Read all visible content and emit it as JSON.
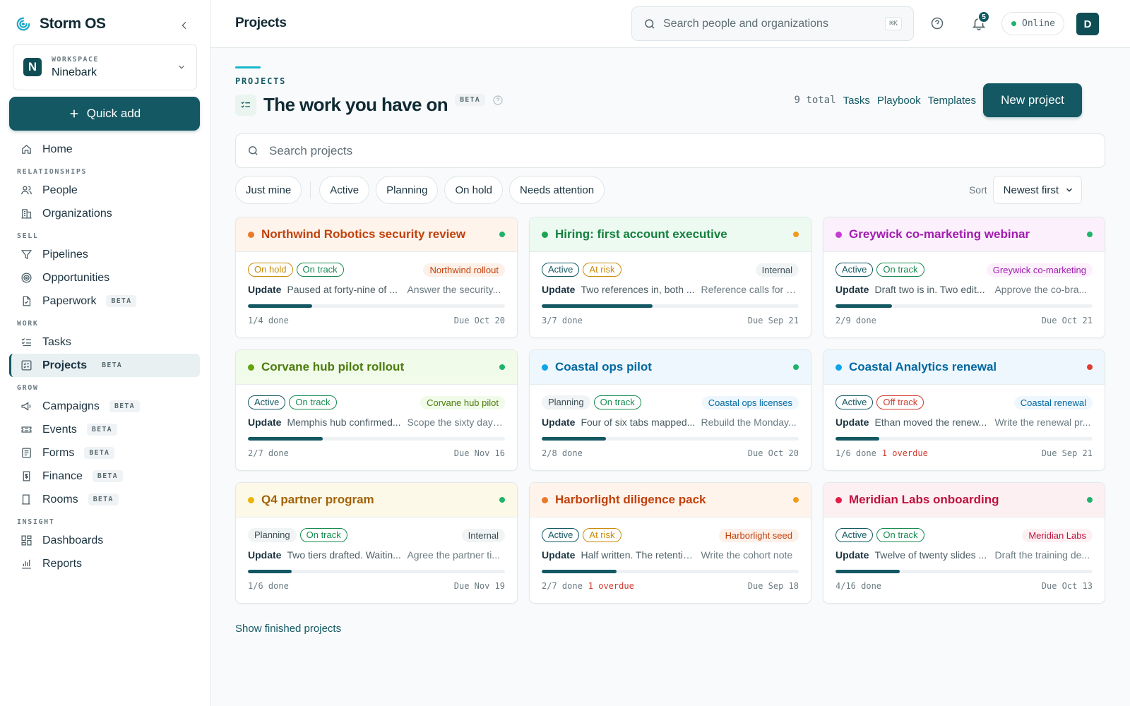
{
  "app": {
    "name": "Storm OS"
  },
  "workspace": {
    "eyebrow": "WORKSPACE",
    "name": "Ninebark",
    "logo_letter": "N"
  },
  "quick_add": "Quick add",
  "beta_label": "BETA",
  "nav": {
    "home": "Home",
    "sec_relationships": "RELATIONSHIPS",
    "people": "People",
    "organizations": "Organizations",
    "sec_sell": "SELL",
    "pipelines": "Pipelines",
    "opportunities": "Opportunities",
    "paperwork": "Paperwork",
    "sec_work": "WORK",
    "tasks": "Tasks",
    "projects": "Projects",
    "sec_grow": "GROW",
    "campaigns": "Campaigns",
    "events": "Events",
    "forms": "Forms",
    "finance": "Finance",
    "rooms": "Rooms",
    "sec_insight": "INSIGHT",
    "dashboards": "Dashboards",
    "reports": "Reports"
  },
  "topbar": {
    "title": "Projects",
    "search_placeholder": "Search people and organizations",
    "shortcut": "⌘K",
    "notif_count": "5",
    "status": "Online",
    "avatar": "D"
  },
  "header": {
    "eyebrow": "PROJECTS",
    "title": "The work you have on",
    "beta": "BETA",
    "total": "9 total",
    "links": [
      "Tasks",
      "Playbook",
      "Templates"
    ],
    "new_button": "New project"
  },
  "project_search": {
    "placeholder": "Search projects"
  },
  "filters": [
    "Just mine",
    "Active",
    "Planning",
    "On hold",
    "Needs attention"
  ],
  "sort": {
    "label": "Sort",
    "value": "Newest first"
  },
  "update_label": "Update",
  "cards": [
    {
      "title": "Northwind Robotics security review",
      "theme": {
        "bg": "#fff4ec",
        "text": "#c2410c",
        "dot": "#ea7a2b"
      },
      "health_color": "#1fb36b",
      "status": "On hold",
      "status_color": "#c98a05",
      "status_plain": false,
      "health": "On track",
      "health_pill_color": "#168a4f",
      "tag": "Northwind rollout",
      "tag_bg": "#fdf0e8",
      "tag_color": "#c2410c",
      "update": "Paused at forty-nine of ...",
      "next": "Answer the security...",
      "progress": 0.25,
      "done": "1/4 done",
      "overdue": "",
      "due": "Due Oct 20"
    },
    {
      "title": "Hiring: first account executive",
      "theme": {
        "bg": "#ecfaf1",
        "text": "#15803d",
        "dot": "#1fa255"
      },
      "health_color": "#f29a1b",
      "status": "Active",
      "status_color": "#135863",
      "status_plain": false,
      "health": "At risk",
      "health_pill_color": "#c98a05",
      "tag": "Internal",
      "tag_bg": "#f1f4f5",
      "tag_color": "#3a4d55",
      "update": "Two references in, both ...",
      "next": "Reference calls for t...",
      "progress": 0.43,
      "done": "3/7 done",
      "overdue": "",
      "due": "Due Sep 21"
    },
    {
      "title": "Greywick co-marketing webinar",
      "theme": {
        "bg": "#fbf0fc",
        "text": "#a21caf",
        "dot": "#c43bd6"
      },
      "health_color": "#1fb36b",
      "status": "Active",
      "status_color": "#135863",
      "status_plain": false,
      "health": "On track",
      "health_pill_color": "#168a4f",
      "tag": "Greywick co-marketing",
      "tag_bg": "#fbf0fc",
      "tag_color": "#a21caf",
      "update": "Draft two is in. Two edit...",
      "next": "Approve the co-bra...",
      "progress": 0.22,
      "done": "2/9 done",
      "overdue": "",
      "due": "Due Oct 21"
    },
    {
      "title": "Corvane hub pilot rollout",
      "theme": {
        "bg": "#f1fbe9",
        "text": "#4d7c0f",
        "dot": "#65a30d"
      },
      "health_color": "#1fb36b",
      "status": "Active",
      "status_color": "#135863",
      "status_plain": false,
      "health": "On track",
      "health_pill_color": "#168a4f",
      "tag": "Corvane hub pilot",
      "tag_bg": "#f1fbe9",
      "tag_color": "#4d7c0f",
      "update": "Memphis hub confirmed...",
      "next": "Scope the sixty day ...",
      "progress": 0.29,
      "done": "2/7 done",
      "overdue": "",
      "due": "Due Nov 16"
    },
    {
      "title": "Coastal ops pilot",
      "theme": {
        "bg": "#eef7fd",
        "text": "#0369a1",
        "dot": "#0ea5e9"
      },
      "health_color": "#1fb36b",
      "status": "Planning",
      "status_color": "#3a4d55",
      "status_plain": true,
      "health": "On track",
      "health_pill_color": "#168a4f",
      "tag": "Coastal ops licenses",
      "tag_bg": "#eef7fd",
      "tag_color": "#0369a1",
      "update": "Four of six tabs mapped...",
      "next": "Rebuild the Monday...",
      "progress": 0.25,
      "done": "2/8 done",
      "overdue": "",
      "due": "Due Oct 20"
    },
    {
      "title": "Coastal Analytics renewal",
      "theme": {
        "bg": "#eef7fd",
        "text": "#0369a1",
        "dot": "#0ea5e9"
      },
      "health_color": "#e23b2e",
      "status": "Active",
      "status_color": "#135863",
      "status_plain": false,
      "health": "Off track",
      "health_pill_color": "#d13a2e",
      "tag": "Coastal renewal",
      "tag_bg": "#eef7fd",
      "tag_color": "#0369a1",
      "update": "Ethan moved the renew...",
      "next": "Write the renewal pr...",
      "progress": 0.17,
      "done": "1/6 done",
      "overdue": "1 overdue",
      "due": "Due Sep 21"
    },
    {
      "title": "Q4 partner program",
      "theme": {
        "bg": "#fdf9e8",
        "text": "#a16207",
        "dot": "#eab308"
      },
      "health_color": "#1fb36b",
      "status": "Planning",
      "status_color": "#3a4d55",
      "status_plain": true,
      "health": "On track",
      "health_pill_color": "#168a4f",
      "tag": "Internal",
      "tag_bg": "#f1f4f5",
      "tag_color": "#3a4d55",
      "update": "Two tiers drafted. Waitin...",
      "next": "Agree the partner ti...",
      "progress": 0.17,
      "done": "1/6 done",
      "overdue": "",
      "due": "Due Nov 19"
    },
    {
      "title": "Harborlight diligence pack",
      "theme": {
        "bg": "#fff4ec",
        "text": "#c2410c",
        "dot": "#ea7a2b"
      },
      "health_color": "#f29a1b",
      "status": "Active",
      "status_color": "#135863",
      "status_plain": false,
      "health": "At risk",
      "health_pill_color": "#c98a05",
      "tag": "Harborlight seed",
      "tag_bg": "#fdf0e8",
      "tag_color": "#c2410c",
      "update": "Half written. The retentio...",
      "next": "Write the cohort note",
      "progress": 0.29,
      "done": "2/7 done",
      "overdue": "1 overdue",
      "due": "Due Sep 18"
    },
    {
      "title": "Meridian Labs onboarding",
      "theme": {
        "bg": "#fdf0f3",
        "text": "#be123c",
        "dot": "#e11d48"
      },
      "health_color": "#1fb36b",
      "status": "Active",
      "status_color": "#135863",
      "status_plain": false,
      "health": "On track",
      "health_pill_color": "#168a4f",
      "tag": "Meridian Labs",
      "tag_bg": "#fdf0f3",
      "tag_color": "#be123c",
      "update": "Twelve of twenty slides ...",
      "next": "Draft the training de...",
      "progress": 0.25,
      "done": "4/16 done",
      "overdue": "",
      "due": "Due Oct 13"
    }
  ],
  "show_finished": "Show finished projects"
}
